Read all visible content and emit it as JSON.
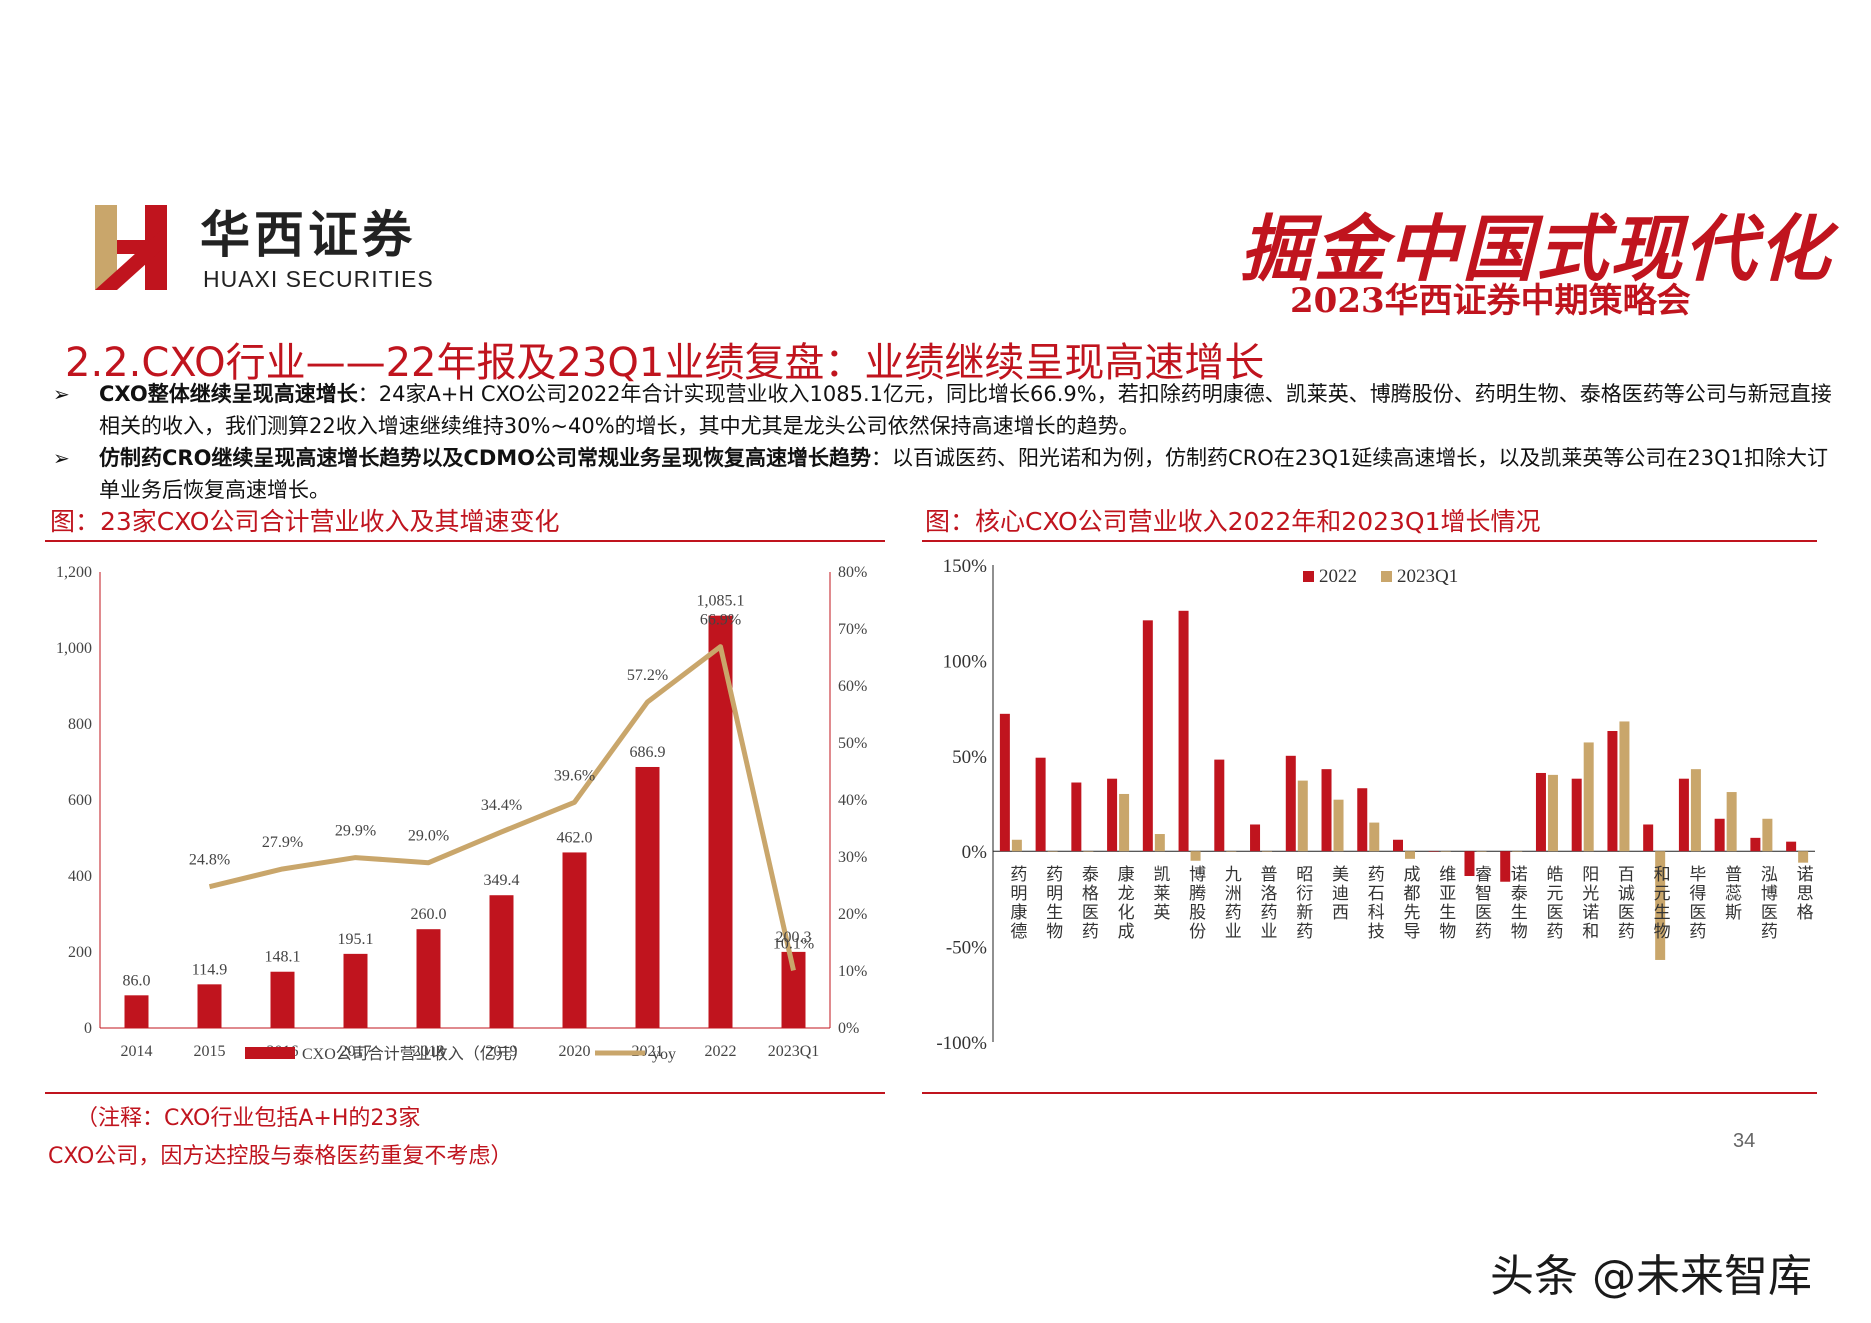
{
  "header": {
    "logo_cn": "华西证券",
    "logo_en": "HUAXI SECURITIES",
    "promo_main": "掘金中国式现代化",
    "promo_sub": "2023华西证券中期策略会"
  },
  "title": "2.2.CXO行业——22年报及23Q1业绩复盘：业绩继续呈现高速增长",
  "bullets": [
    {
      "bold": "CXO整体继续呈现高速增长",
      "text": "：24家A+H CXO公司2022年合计实现营业收入1085.1亿元，同比增长66.9%，若扣除药明康德、凯莱英、博腾股份、药明生物、泰格医药等公司与新冠直接相关的收入，我们测算22收入增速继续维持30%~40%的增长，其中尤其是龙头公司依然保持高速增长的趋势。"
    },
    {
      "bold": "仿制药CRO继续呈现高速增长趋势以及CDMO公司常规业务呈现恢复高速增长趋势",
      "text": "：以百诚医药、阳光诺和为例，仿制药CRO在23Q1延续高速增长，以及凯莱英等公司在23Q1扣除大订单业务后恢复高速增长。"
    }
  ],
  "figure_left_title": "图：23家CXO公司合计营业收入及其增速变化",
  "figure_right_title": "图：核心CXO公司营业收入2022年和2023Q1增长情况",
  "note_line1": "（注释：CXO行业包括A+H的23家",
  "note_line2": "CXO公司，因方达控股与泰格医药重复不考虑）",
  "page_number": "34",
  "watermark": "头条 @未来智库",
  "colors": {
    "accent": "#c0141e",
    "gold": "#c9a66b"
  },
  "chart_data": [
    {
      "type": "bar",
      "categories": [
        "2014",
        "2015",
        "2016",
        "2017",
        "2018",
        "2019",
        "2020",
        "2021",
        "2022",
        "2023Q1"
      ],
      "series": [
        {
          "name": "CXO公司合计营业收入（亿元）",
          "type": "bar",
          "axis": "left",
          "values": [
            86.0,
            114.9,
            148.1,
            195.1,
            260.0,
            349.4,
            462.0,
            686.9,
            1085.1,
            200.3
          ],
          "labels": [
            "86.0",
            "114.9",
            "148.1",
            "195.1",
            "260.0",
            "349.4",
            "462.0",
            "686.9",
            "1,085.1",
            "200.3"
          ]
        },
        {
          "name": "yoy",
          "type": "line",
          "axis": "right",
          "values": [
            null,
            24.8,
            27.9,
            29.9,
            29.0,
            34.4,
            39.6,
            57.2,
            66.9,
            10.1
          ],
          "labels": [
            "",
            "24.8%",
            "27.9%",
            "29.9%",
            "29.0%",
            "34.4%",
            "39.6%",
            "57.2%",
            "66.9%",
            "10.1%"
          ]
        }
      ],
      "y_left": {
        "min": 0,
        "max": 1200,
        "ticks": [
          "0",
          "200",
          "400",
          "600",
          "800",
          "1,000",
          "1,200"
        ]
      },
      "y_right": {
        "min": 0,
        "max": 80,
        "ticks": [
          "0%",
          "10%",
          "20%",
          "30%",
          "40%",
          "50%",
          "60%",
          "70%",
          "80%"
        ]
      },
      "legend_position": "bottom"
    },
    {
      "type": "bar",
      "categories": [
        "药明康德",
        "药明生物",
        "泰格医药",
        "康龙化成",
        "凯莱英",
        "博腾股份",
        "九洲药业",
        "普洛药业",
        "昭衍新药",
        "美迪西",
        "药石科技",
        "成都先导",
        "维亚生物",
        "睿智医药",
        "诺泰生物",
        "皓元医药",
        "阳光诺和",
        "百诚医药",
        "和元生物",
        "毕得医药",
        "普蕊斯",
        "泓博医药",
        "诺思格"
      ],
      "series": [
        {
          "name": "2022",
          "values": [
            72,
            49,
            36,
            38,
            121,
            126,
            48,
            14,
            50,
            43,
            33,
            6,
            0,
            -13,
            -16,
            41,
            38,
            63,
            14,
            38,
            17,
            7,
            5
          ]
        },
        {
          "name": "2023Q1",
          "values": [
            6,
            0,
            0,
            30,
            9,
            -5,
            0,
            0,
            37,
            27,
            15,
            -4,
            0,
            0,
            0,
            40,
            57,
            68,
            -57,
            43,
            31,
            17,
            -6
          ]
        }
      ],
      "y": {
        "min": -100,
        "max": 150,
        "ticks": [
          "-100%",
          "-50%",
          "0%",
          "50%",
          "100%",
          "150%"
        ]
      },
      "legend_position": "top"
    }
  ]
}
